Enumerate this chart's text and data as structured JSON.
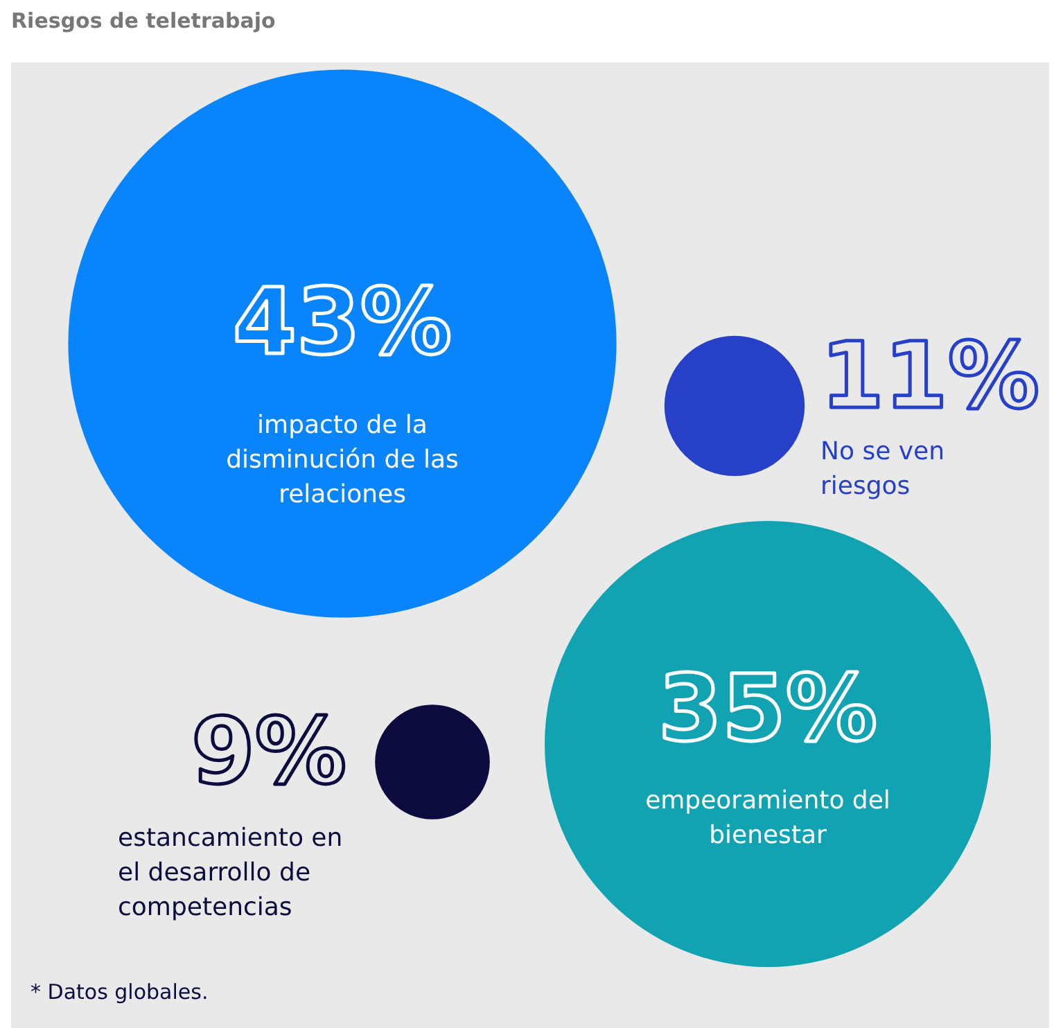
{
  "chart_data": {
    "type": "other",
    "title": "Riesgos de teletrabajo",
    "categories": [
      "impacto de la disminución de las relaciones",
      "No se ven riesgos",
      "empeoramiento del bienestar",
      "estancamiento en el desarrollo de competencias"
    ],
    "values": [
      43,
      11,
      35,
      9
    ],
    "value_labels": [
      "43%",
      "11%",
      "35%",
      "9%"
    ],
    "colors": [
      "#0a84fb",
      "#2740c8",
      "#12a3b2",
      "#0b0b3e"
    ],
    "annotations": [
      "* Datos globales."
    ]
  }
}
